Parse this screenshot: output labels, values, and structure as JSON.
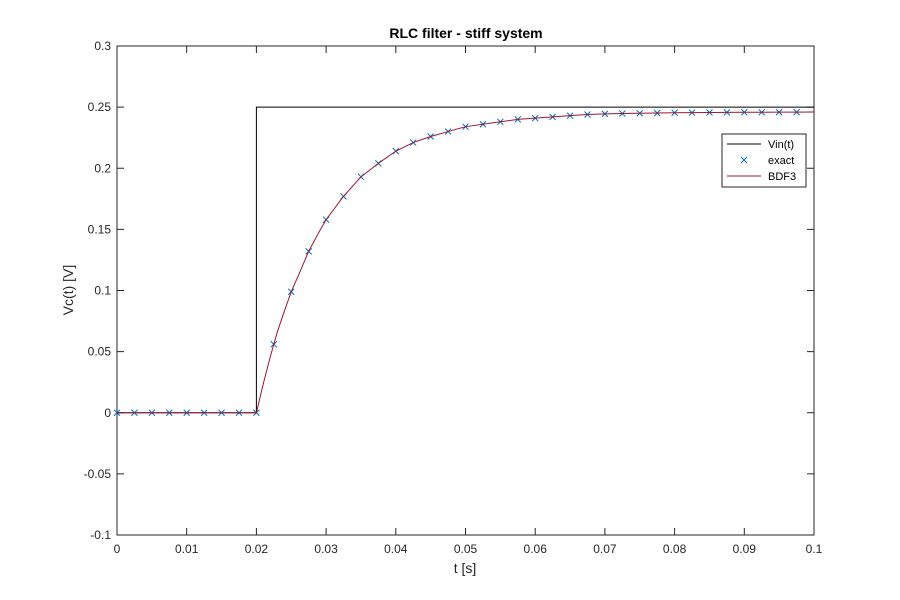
{
  "chart_data": {
    "type": "line",
    "title": "RLC filter - stiff system",
    "xlabel": "t [s]",
    "ylabel": "Vc(t) [V]",
    "xlim": [
      0,
      0.1
    ],
    "ylim": [
      -0.1,
      0.3
    ],
    "xticks": [
      0,
      0.01,
      0.02,
      0.03,
      0.04,
      0.05,
      0.06,
      0.07,
      0.08,
      0.09,
      0.1
    ],
    "xtick_labels": [
      "0",
      "0.01",
      "0.02",
      "0.03",
      "0.04",
      "0.05",
      "0.06",
      "0.07",
      "0.08",
      "0.09",
      "0.1"
    ],
    "yticks": [
      -0.1,
      -0.05,
      0,
      0.05,
      0.1,
      0.15,
      0.2,
      0.25,
      0.3
    ],
    "ytick_labels": [
      "-0.1",
      "-0.05",
      "0",
      "0.05",
      "0.1",
      "0.15",
      "0.2",
      "0.25",
      "0.3"
    ],
    "grid": false,
    "legend_position": "top-right",
    "series": [
      {
        "name": "Vin(t)",
        "style": "line",
        "color": "#000000",
        "x": [
          0,
          0.02,
          0.02,
          0.1
        ],
        "y": [
          0,
          0,
          0.25,
          0.25
        ]
      },
      {
        "name": "exact",
        "style": "marker-x",
        "color": "#0072BD",
        "x": [
          0,
          0.0025,
          0.005,
          0.0075,
          0.01,
          0.0125,
          0.015,
          0.0175,
          0.02,
          0.0225,
          0.025,
          0.0275,
          0.03,
          0.0325,
          0.035,
          0.0375,
          0.04,
          0.0425,
          0.045,
          0.0475,
          0.05,
          0.0525,
          0.055,
          0.0575,
          0.06,
          0.0625,
          0.065,
          0.0675,
          0.07,
          0.0725,
          0.075,
          0.0775,
          0.08,
          0.0825,
          0.085,
          0.0875,
          0.09,
          0.0925,
          0.095,
          0.0975
        ],
        "y": [
          0,
          0,
          0,
          0,
          0,
          0,
          0,
          0,
          0,
          0.056,
          0.099,
          0.132,
          0.158,
          0.177,
          0.193,
          0.204,
          0.214,
          0.221,
          0.226,
          0.23,
          0.234,
          0.236,
          0.238,
          0.24,
          0.241,
          0.242,
          0.243,
          0.244,
          0.2445,
          0.2448,
          0.245,
          0.2452,
          0.2454,
          0.2455,
          0.2456,
          0.2457,
          0.2458,
          0.2458,
          0.2459,
          0.2459
        ]
      },
      {
        "name": "BDF3",
        "style": "line",
        "color": "#A2142F",
        "x": [
          0,
          0.02,
          0.0205,
          0.021,
          0.0215,
          0.022,
          0.0225,
          0.023,
          0.024,
          0.025,
          0.026,
          0.0275,
          0.029,
          0.03,
          0.0325,
          0.035,
          0.0375,
          0.04,
          0.0425,
          0.045,
          0.0475,
          0.05,
          0.0525,
          0.055,
          0.0575,
          0.06,
          0.0625,
          0.065,
          0.0675,
          0.07,
          0.0725,
          0.075,
          0.0775,
          0.08,
          0.0825,
          0.085,
          0.0875,
          0.09,
          0.0925,
          0.095,
          0.0975,
          0.1
        ],
        "y": [
          0,
          0,
          0.012,
          0.024,
          0.035,
          0.046,
          0.056,
          0.066,
          0.083,
          0.099,
          0.112,
          0.132,
          0.148,
          0.158,
          0.177,
          0.193,
          0.204,
          0.214,
          0.221,
          0.226,
          0.23,
          0.234,
          0.236,
          0.238,
          0.24,
          0.241,
          0.242,
          0.243,
          0.244,
          0.2445,
          0.2448,
          0.245,
          0.2452,
          0.2454,
          0.2455,
          0.2456,
          0.2457,
          0.2458,
          0.2458,
          0.2459,
          0.2459,
          0.246
        ]
      }
    ]
  }
}
